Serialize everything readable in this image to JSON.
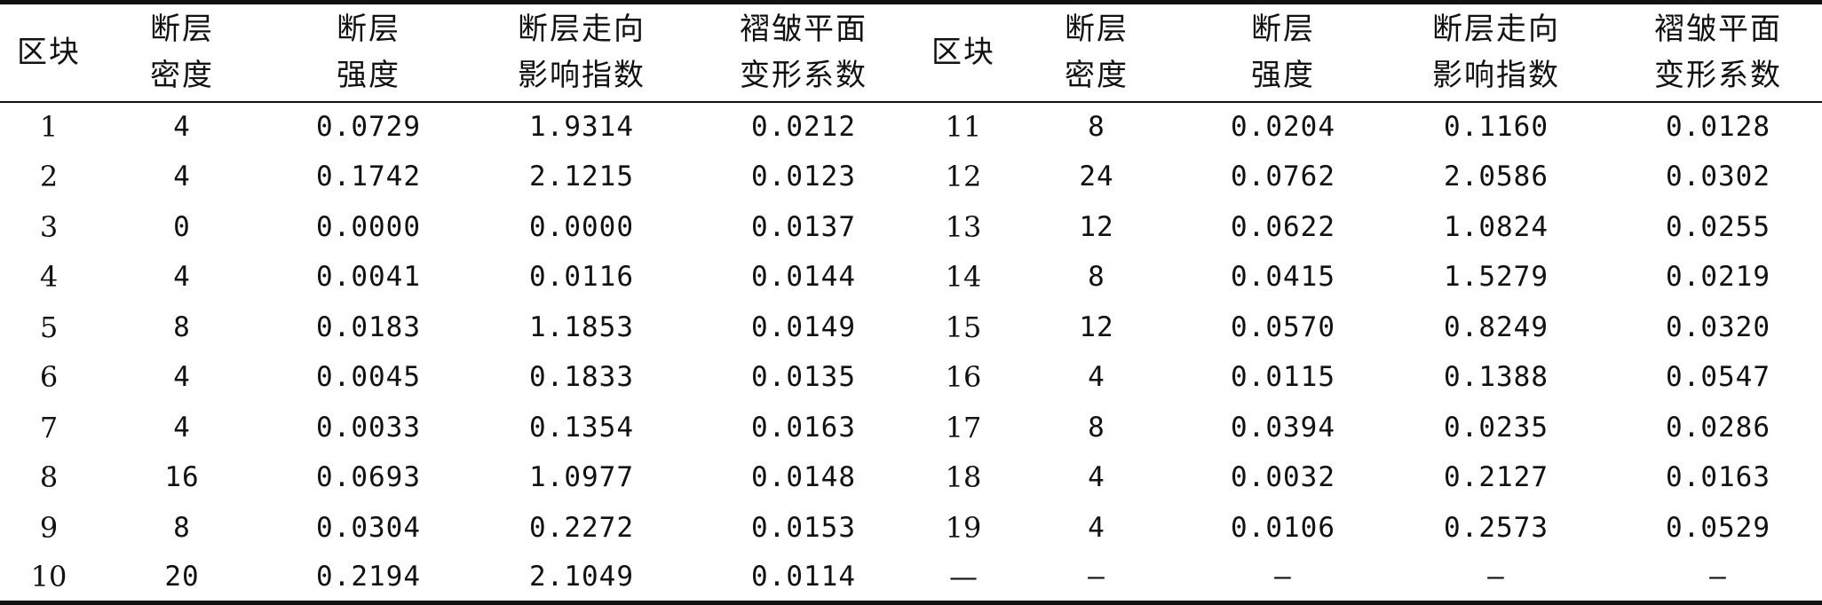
{
  "table": {
    "headers": [
      [
        "区块"
      ],
      [
        "断层",
        "密度"
      ],
      [
        "断层",
        "强度"
      ],
      [
        "断层走向",
        "影响指数"
      ],
      [
        "褶皱平面",
        "变形系数"
      ],
      [
        "区块"
      ],
      [
        "断层",
        "密度"
      ],
      [
        "断层",
        "强度"
      ],
      [
        "断层走向",
        "影响指数"
      ],
      [
        "褶皱平面",
        "变形系数"
      ]
    ],
    "rows": [
      [
        "1",
        "4",
        "0.0729",
        "1.9314",
        "0.0212",
        "11",
        "8",
        "0.0204",
        "0.1160",
        "0.0128"
      ],
      [
        "2",
        "4",
        "0.1742",
        "2.1215",
        "0.0123",
        "12",
        "24",
        "0.0762",
        "2.0586",
        "0.0302"
      ],
      [
        "3",
        "0",
        "0.0000",
        "0.0000",
        "0.0137",
        "13",
        "12",
        "0.0622",
        "1.0824",
        "0.0255"
      ],
      [
        "4",
        "4",
        "0.0041",
        "0.0116",
        "0.0144",
        "14",
        "8",
        "0.0415",
        "1.5279",
        "0.0219"
      ],
      [
        "5",
        "8",
        "0.0183",
        "1.1853",
        "0.0149",
        "15",
        "12",
        "0.0570",
        "0.8249",
        "0.0320"
      ],
      [
        "6",
        "4",
        "0.0045",
        "0.1833",
        "0.0135",
        "16",
        "4",
        "0.0115",
        "0.1388",
        "0.0547"
      ],
      [
        "7",
        "4",
        "0.0033",
        "0.1354",
        "0.0163",
        "17",
        "8",
        "0.0394",
        "0.0235",
        "0.0286"
      ],
      [
        "8",
        "16",
        "0.0693",
        "1.0977",
        "0.0148",
        "18",
        "4",
        "0.0032",
        "0.2127",
        "0.0163"
      ],
      [
        "9",
        "8",
        "0.0304",
        "0.2272",
        "0.0153",
        "19",
        "4",
        "0.0106",
        "0.2573",
        "0.0529"
      ],
      [
        "10",
        "20",
        "0.2194",
        "2.1049",
        "0.0114",
        "—",
        "—",
        "—",
        "—",
        "—"
      ]
    ]
  }
}
